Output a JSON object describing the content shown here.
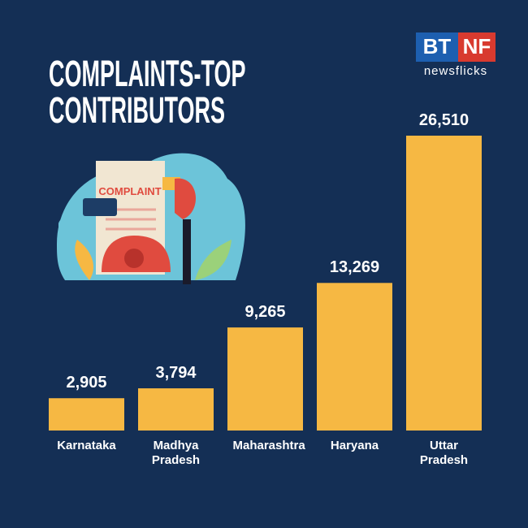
{
  "chart_data": {
    "type": "bar",
    "title": "COMPLAINTS-TOP CONTRIBUTORS",
    "categories": [
      "Karnataka",
      "Madhya Pradesh",
      "Maharashtra",
      "Haryana",
      "Uttar Pradesh"
    ],
    "values": [
      2905,
      3794,
      9265,
      13269,
      26510
    ],
    "value_labels": [
      "2,905",
      "3,794",
      "9,265",
      "13,269",
      "26,510"
    ],
    "color": "#f6b843"
  },
  "logo": {
    "left": "BT",
    "right": "NF",
    "tagline": "newsflicks"
  },
  "illustration": {
    "text": "COMPLAINT"
  }
}
